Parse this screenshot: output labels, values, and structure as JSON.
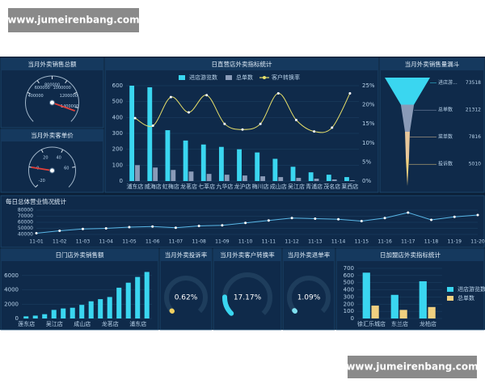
{
  "watermarks": [
    "www.jumeirenbang.com",
    "www.jumeirenbang.com"
  ],
  "chart_data": [
    {
      "type": "gauge",
      "title": "当月外卖销售总额",
      "ylim": [
        0,
        1600000
      ],
      "yticks": [
        400000,
        600000,
        800000,
        1000000,
        1200000,
        1400000
      ],
      "value": 1450000,
      "color": "#e0403a"
    },
    {
      "type": "gauge",
      "title": "当月外卖客单价",
      "ylim": [
        -20,
        80
      ],
      "yticks": [
        -20,
        0,
        20,
        40,
        60
      ],
      "value": 0,
      "color": "#e0403a"
    },
    {
      "type": "bar",
      "title": "日直营店外卖指标统计",
      "legend": "top",
      "categories": [
        "浦东店",
        "威海店",
        "虹梅店",
        "龙茗店",
        "七莘店",
        "九华店",
        "龙沪店",
        "梅川店",
        "成山店",
        "吴江店",
        "青浦店",
        "茂名店",
        "莱西店"
      ],
      "series": [
        {
          "name": "进店游览数",
          "color": "#3ad6f0",
          "values": [
            600,
            590,
            320,
            255,
            230,
            215,
            200,
            180,
            140,
            90,
            55,
            40,
            25
          ]
        },
        {
          "name": "总单数",
          "color": "#8a9bb8",
          "values": [
            100,
            85,
            70,
            60,
            45,
            40,
            35,
            30,
            25,
            20,
            15,
            10,
            5
          ]
        },
        {
          "name": "客户转换率",
          "color": "#e8e06a",
          "type": "line",
          "axis": "y2",
          "values": [
            16.5,
            14.5,
            22,
            18,
            22.5,
            15,
            13.5,
            15,
            23,
            16,
            13,
            14,
            23
          ]
        }
      ],
      "ylim": [
        0,
        600
      ],
      "yticks": [
        0,
        100,
        200,
        300,
        400,
        500,
        600
      ],
      "y2lim": [
        0,
        25
      ],
      "y2ticks": [
        {
          "value": 0,
          "label": "0%"
        },
        {
          "value": 5,
          "label": "5%"
        },
        {
          "value": 10,
          "label": "10%"
        },
        {
          "value": 15,
          "label": "15%"
        },
        {
          "value": 20,
          "label": "20%"
        },
        {
          "value": 25,
          "label": "25%"
        }
      ]
    },
    {
      "type": "funnel",
      "title": "当月外卖销售量漏斗",
      "categories": [
        "进店游...",
        "总单数",
        "菜单数",
        "投诉数"
      ],
      "values": [
        73518,
        21312,
        7816,
        5010
      ],
      "colors": [
        "#3ad6f0",
        "#8a9bb8",
        "#e8c79a",
        "#f0d080"
      ]
    },
    {
      "type": "line",
      "title": "每日总体营业情况统计",
      "color": "#5ab8e8",
      "categories": [
        "11-01",
        "11-02",
        "11-03",
        "11-04",
        "11-05",
        "11-06",
        "11-07",
        "11-08",
        "11-09",
        "11-10",
        "11-11",
        "11-12",
        "11-13",
        "11-14",
        "11-15",
        "11-16",
        "11-17",
        "11-18",
        "11-19",
        "11-20"
      ],
      "values": [
        42000,
        46000,
        49000,
        50000,
        52000,
        53000,
        51000,
        54000,
        55000,
        59000,
        63000,
        67000,
        66000,
        65000,
        62000,
        67000,
        76000,
        64000,
        69000,
        72000
      ],
      "ylim": [
        40000,
        80000
      ],
      "yticks": [
        40000,
        50000,
        60000,
        70000,
        80000
      ]
    },
    {
      "type": "bar",
      "title": "日门店外卖销售额",
      "color": "#3ad6f0",
      "categories": [
        "莲东店",
        null,
        null,
        "吴江店",
        null,
        null,
        "成山店",
        null,
        null,
        "龙茗店",
        null,
        null,
        "浦东店",
        null
      ],
      "values": [
        300,
        400,
        600,
        1200,
        1400,
        1500,
        1900,
        2400,
        2700,
        3000,
        4300,
        5000,
        5800,
        6500
      ],
      "ylim": [
        0,
        7000
      ],
      "yticks": [
        0,
        2000,
        4000,
        6000
      ]
    },
    {
      "type": "ring",
      "title": "当月外卖投诉率",
      "value": 0.62,
      "value_labels": "0.62%",
      "ylim": [
        0,
        100
      ],
      "color": "#f0d060"
    },
    {
      "type": "ring",
      "title": "当月外卖客户转换率",
      "value": 17.17,
      "value_labels": "17.17%",
      "ylim": [
        0,
        100
      ],
      "color": "#3ad6f0"
    },
    {
      "type": "ring",
      "title": "当月外卖退单率",
      "value": 1.09,
      "value_labels": "1.09%",
      "ylim": [
        0,
        100
      ],
      "color": "#7fe0f0"
    },
    {
      "type": "bar",
      "title": "日加盟店外卖指标统计",
      "legend": "right",
      "categories": [
        "徐汇乐城店",
        "东兰店",
        "龙柏店"
      ],
      "series": [
        {
          "name": "进店游览数",
          "color": "#3ad6f0",
          "values": [
            640,
            330,
            520
          ]
        },
        {
          "name": "总单数",
          "color": "#f0d080",
          "values": [
            180,
            120,
            160
          ]
        }
      ],
      "ylim": [
        0,
        700
      ],
      "yticks": [
        0,
        100,
        200,
        300,
        400,
        500,
        600,
        700
      ]
    }
  ]
}
